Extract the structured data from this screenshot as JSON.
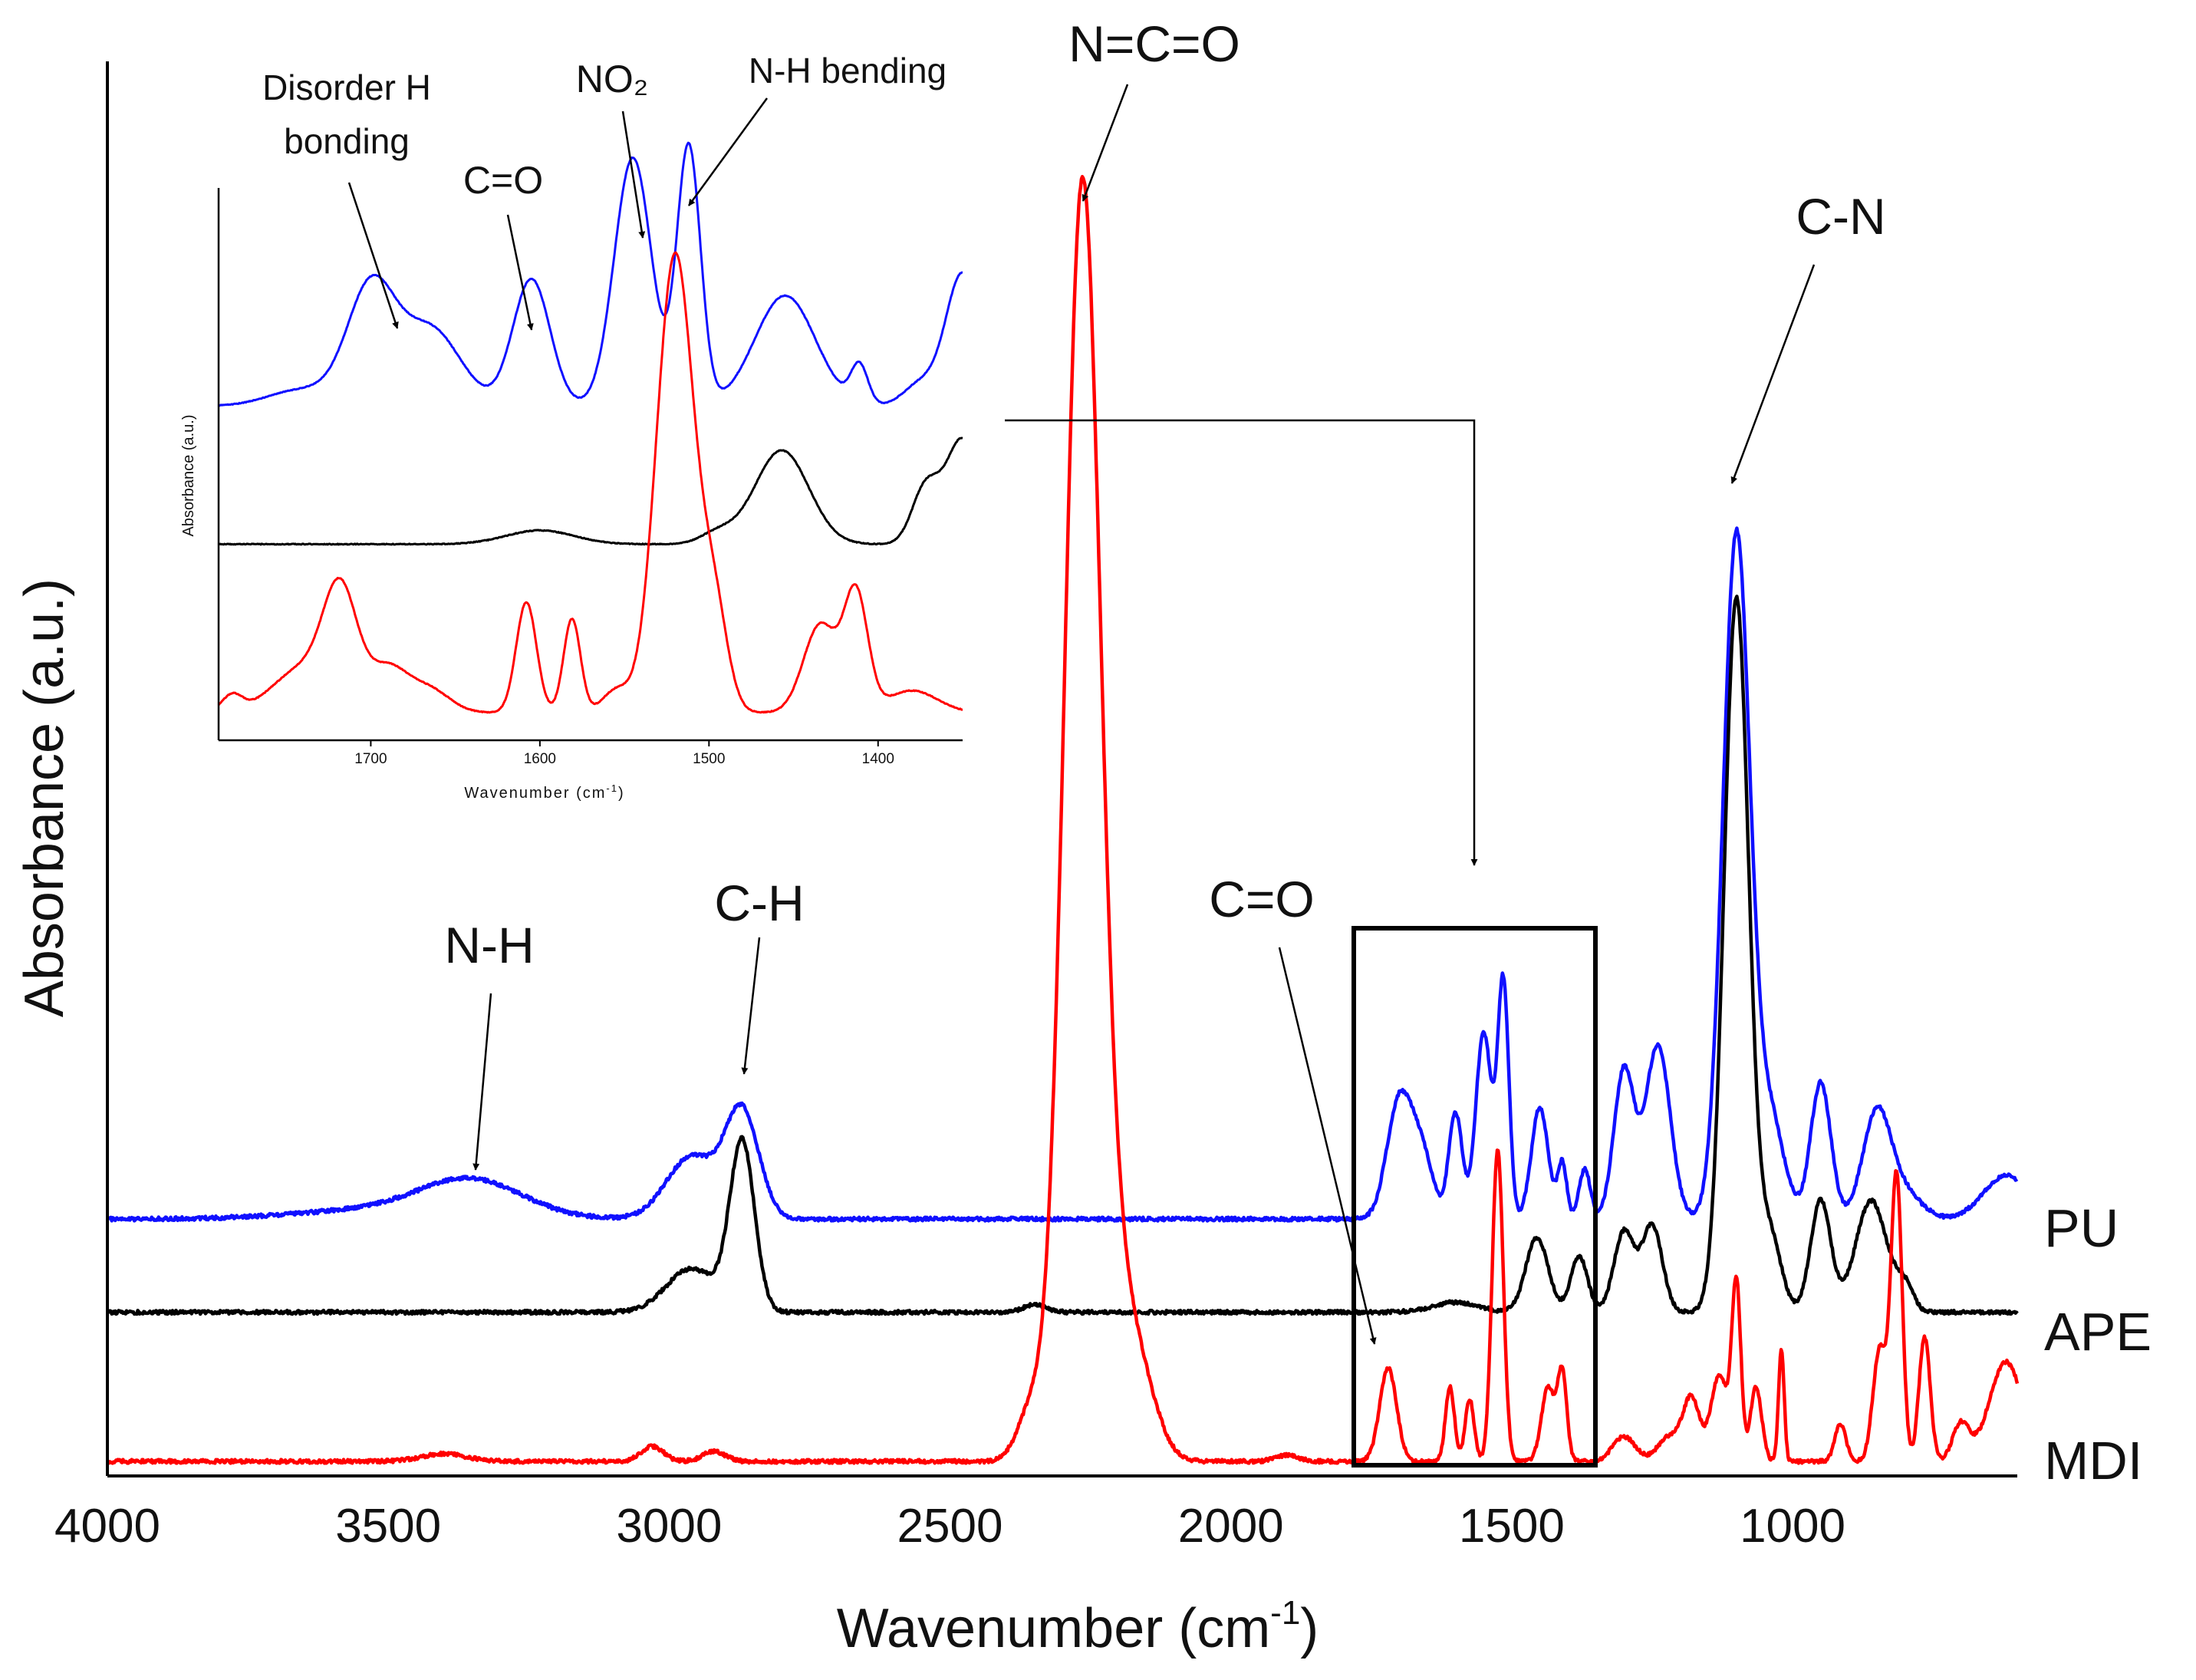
{
  "chart_data": [
    {
      "id": "main",
      "type": "line",
      "title": "",
      "xlabel": "Wavenumber (cm",
      "xlabel_superscript": "-1",
      "xlabel_suffix": ")",
      "ylabel": "Absorbance (a.u.)",
      "xlim": [
        4000,
        600
      ],
      "ylim": [
        0,
        1
      ],
      "x_ticks": [
        4000,
        3500,
        3000,
        2500,
        2000,
        1500,
        1000
      ],
      "grid": false,
      "legend_placement": "right",
      "series": [
        {
          "name": "PU",
          "color": "#1010ff",
          "offset": 0.195,
          "peaks": [
            {
              "x": 3350,
              "h": 0.028,
              "w": 90
            },
            {
              "x": 3500,
              "h": 0.008,
              "w": 150
            },
            {
              "x": 2960,
              "h": 0.05,
              "w": 45
            },
            {
              "x": 2870,
              "h": 0.085,
              "w": 30
            },
            {
              "x": 1700,
              "h": 0.095,
              "w": 22
            },
            {
              "x": 1660,
              "h": 0.05,
              "w": 20
            },
            {
              "x": 1600,
              "h": 0.085,
              "w": 12
            },
            {
              "x": 1550,
              "h": 0.15,
              "w": 14
            },
            {
              "x": 1515,
              "h": 0.19,
              "w": 10
            },
            {
              "x": 1450,
              "h": 0.09,
              "w": 15
            },
            {
              "x": 1410,
              "h": 0.045,
              "w": 8
            },
            {
              "x": 1370,
              "h": 0.04,
              "w": 10
            },
            {
              "x": 1300,
              "h": 0.12,
              "w": 18
            },
            {
              "x": 1240,
              "h": 0.14,
              "w": 22
            },
            {
              "x": 1100,
              "h": 0.55,
              "w": 24
            },
            {
              "x": 1040,
              "h": 0.08,
              "w": 25
            },
            {
              "x": 950,
              "h": 0.11,
              "w": 18
            },
            {
              "x": 850,
              "h": 0.085,
              "w": 25
            },
            {
              "x": 800,
              "h": 0.02,
              "w": 30
            },
            {
              "x": 620,
              "h": 0.035,
              "w": 40
            }
          ]
        },
        {
          "name": "APE",
          "color": "#000000",
          "offset": 0.12,
          "peaks": [
            {
              "x": 2960,
              "h": 0.035,
              "w": 45
            },
            {
              "x": 2870,
              "h": 0.135,
              "w": 22
            },
            {
              "x": 2350,
              "h": 0.006,
              "w": 20
            },
            {
              "x": 1600,
              "h": 0.008,
              "w": 40
            },
            {
              "x": 1455,
              "h": 0.06,
              "w": 20
            },
            {
              "x": 1380,
              "h": 0.045,
              "w": 15
            },
            {
              "x": 1300,
              "h": 0.065,
              "w": 18
            },
            {
              "x": 1250,
              "h": 0.07,
              "w": 18
            },
            {
              "x": 1100,
              "h": 0.575,
              "w": 22
            },
            {
              "x": 1040,
              "h": 0.06,
              "w": 20
            },
            {
              "x": 950,
              "h": 0.09,
              "w": 18
            },
            {
              "x": 860,
              "h": 0.09,
              "w": 28
            },
            {
              "x": 800,
              "h": 0.02,
              "w": 15
            }
          ]
        },
        {
          "name": "MDI",
          "color": "#ff0000",
          "offset": 0.0,
          "peaks": [
            {
              "x": 3400,
              "h": 0.006,
              "w": 40
            },
            {
              "x": 3030,
              "h": 0.012,
              "w": 20
            },
            {
              "x": 2920,
              "h": 0.008,
              "w": 20
            },
            {
              "x": 2355,
              "h": 0.04,
              "w": 25
            },
            {
              "x": 2265,
              "h": 1.0,
              "w": 32
            },
            {
              "x": 2200,
              "h": 0.12,
              "w": 40
            },
            {
              "x": 2150,
              "h": 0.02,
              "w": 30
            },
            {
              "x": 1900,
              "h": 0.005,
              "w": 20
            },
            {
              "x": 1720,
              "h": 0.075,
              "w": 15
            },
            {
              "x": 1610,
              "h": 0.06,
              "w": 8
            },
            {
              "x": 1575,
              "h": 0.05,
              "w": 8
            },
            {
              "x": 1525,
              "h": 0.25,
              "w": 10
            },
            {
              "x": 1435,
              "h": 0.06,
              "w": 12
            },
            {
              "x": 1410,
              "h": 0.07,
              "w": 8
            },
            {
              "x": 1300,
              "h": 0.02,
              "w": 20
            },
            {
              "x": 1220,
              "h": 0.02,
              "w": 20
            },
            {
              "x": 1180,
              "h": 0.05,
              "w": 15
            },
            {
              "x": 1130,
              "h": 0.07,
              "w": 15
            },
            {
              "x": 1100,
              "h": 0.14,
              "w": 8
            },
            {
              "x": 1065,
              "h": 0.06,
              "w": 10
            },
            {
              "x": 1020,
              "h": 0.09,
              "w": 5
            },
            {
              "x": 915,
              "h": 0.03,
              "w": 10
            },
            {
              "x": 845,
              "h": 0.09,
              "w": 12
            },
            {
              "x": 815,
              "h": 0.23,
              "w": 10
            },
            {
              "x": 765,
              "h": 0.1,
              "w": 10
            },
            {
              "x": 700,
              "h": 0.03,
              "w": 15
            },
            {
              "x": 620,
              "h": 0.08,
              "w": 30
            }
          ]
        }
      ],
      "annotations": [
        {
          "text": "N=C=O",
          "target_x": 2265
        },
        {
          "text": "C-N",
          "target_x": 1100
        },
        {
          "text": "C-H",
          "target_x": 2870
        },
        {
          "text": "N-H",
          "target_x": 3350
        },
        {
          "text": "C=O",
          "target_x": 1720
        }
      ],
      "inset_region": [
        1780,
        1350
      ]
    },
    {
      "id": "inset",
      "type": "line",
      "title": "",
      "xlabel": "Wavenumber (cm",
      "xlabel_superscript": "-1",
      "xlabel_suffix": ")",
      "ylabel": "Absorbance (a.u.)",
      "xlim": [
        1790,
        1350
      ],
      "ylim": [
        0,
        1
      ],
      "x_ticks": [
        1700,
        1600,
        1500,
        1400
      ],
      "grid": false,
      "series": [
        {
          "name": "PU",
          "color": "#1010ff",
          "offset": 0.605,
          "peaks": [
            {
              "x": 1700,
              "h": 0.21,
              "w": 14
            },
            {
              "x": 1665,
              "h": 0.14,
              "w": 18
            },
            {
              "x": 1740,
              "h": 0.03,
              "w": 20
            },
            {
              "x": 1605,
              "h": 0.23,
              "w": 11
            },
            {
              "x": 1545,
              "h": 0.45,
              "w": 11
            },
            {
              "x": 1512,
              "h": 0.47,
              "w": 7
            },
            {
              "x": 1455,
              "h": 0.2,
              "w": 18
            },
            {
              "x": 1411,
              "h": 0.07,
              "w": 5
            },
            {
              "x": 1350,
              "h": 0.24,
              "w": 10
            },
            {
              "x": 1375,
              "h": 0.04,
              "w": 10
            }
          ]
        },
        {
          "name": "APE",
          "color": "#000000",
          "offset": 0.355,
          "peaks": [
            {
              "x": 1600,
              "h": 0.025,
              "w": 20
            },
            {
              "x": 1495,
              "h": 0.02,
              "w": 10
            },
            {
              "x": 1457,
              "h": 0.17,
              "w": 16
            },
            {
              "x": 1372,
              "h": 0.1,
              "w": 8
            },
            {
              "x": 1350,
              "h": 0.19,
              "w": 10
            }
          ]
        },
        {
          "name": "MDI",
          "color": "#ff0000",
          "offset": 0.05,
          "peaks": [
            {
              "x": 1782,
              "h": 0.03,
              "w": 6
            },
            {
              "x": 1718,
              "h": 0.2,
              "w": 10
            },
            {
              "x": 1740,
              "h": 0.08,
              "w": 18
            },
            {
              "x": 1690,
              "h": 0.08,
              "w": 12
            },
            {
              "x": 1665,
              "h": 0.04,
              "w": 12
            },
            {
              "x": 1608,
              "h": 0.2,
              "w": 6
            },
            {
              "x": 1581,
              "h": 0.17,
              "w": 5
            },
            {
              "x": 1555,
              "h": 0.04,
              "w": 8
            },
            {
              "x": 1520,
              "h": 0.83,
              "w": 11
            },
            {
              "x": 1497,
              "h": 0.18,
              "w": 8
            },
            {
              "x": 1434,
              "h": 0.16,
              "w": 10
            },
            {
              "x": 1413,
              "h": 0.21,
              "w": 7
            },
            {
              "x": 1380,
              "h": 0.04,
              "w": 15
            }
          ]
        }
      ],
      "annotations": [
        {
          "text": "Disorder H",
          "text2": "bonding",
          "target_x": 1700
        },
        {
          "text": "C=O",
          "target_x": 1605
        },
        {
          "text": "NO₂",
          "target_x": 1545
        },
        {
          "text": "N-H bending",
          "target_x": 1512
        }
      ]
    }
  ]
}
